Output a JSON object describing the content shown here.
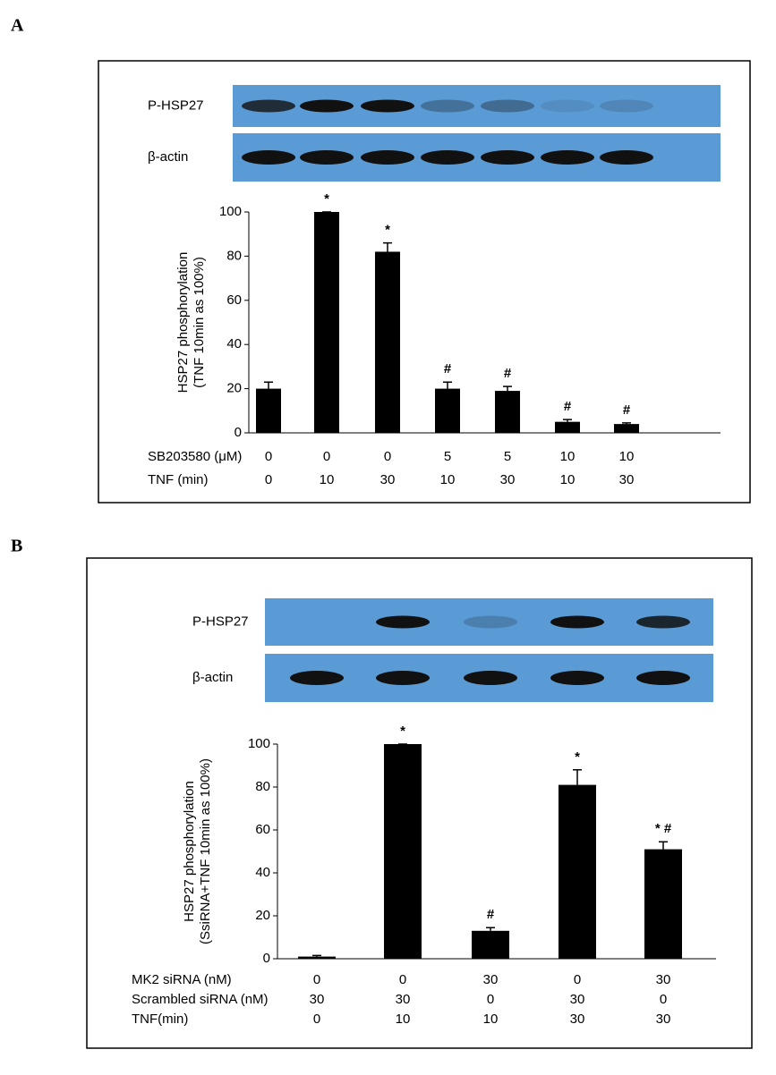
{
  "panels": [
    "A",
    "B"
  ],
  "blot_labels": [
    "P-HSP27",
    "β-actin"
  ],
  "chart_data": [
    {
      "type": "bar",
      "y_label": [
        "HSP27 phosphorylation",
        "(TNF 10min as 100%)"
      ],
      "values": [
        20,
        100,
        82,
        20,
        19,
        5,
        4
      ],
      "errors": [
        3,
        0,
        4,
        3,
        2,
        1,
        0.5
      ],
      "value_annotations": [
        null,
        "*",
        "*",
        "#",
        "#",
        "#",
        "#"
      ],
      "color": "#000000",
      "ylim": [
        0,
        100
      ],
      "yticks": [
        0,
        20,
        40,
        60,
        80,
        100
      ],
      "condition_rows": [
        {
          "label": "SB203580 (μM)",
          "values": [
            0,
            0,
            0,
            5,
            5,
            10,
            10
          ]
        },
        {
          "label": "TNF (min)",
          "values": [
            0,
            10,
            30,
            10,
            30,
            10,
            30
          ]
        }
      ]
    },
    {
      "type": "bar",
      "y_label": [
        "HSP27 phosphorylation",
        "(SsiRNA+TNF 10min as 100%)"
      ],
      "values": [
        1,
        100,
        13,
        81,
        51
      ],
      "errors": [
        0.5,
        0,
        1.5,
        7,
        3.5
      ],
      "value_annotations": [
        null,
        "*",
        "#",
        "*",
        "* #"
      ],
      "color": "#000000",
      "ylim": [
        0,
        100
      ],
      "yticks": [
        0,
        20,
        40,
        60,
        80,
        100
      ],
      "condition_rows": [
        {
          "label": "MK2 siRNA (nM)",
          "values": [
            0,
            0,
            30,
            0,
            30
          ]
        },
        {
          "label": "Scrambled siRNA (nM)",
          "values": [
            30,
            30,
            0,
            30,
            0
          ]
        },
        {
          "label": "TNF(min)",
          "values": [
            0,
            10,
            10,
            30,
            30
          ]
        }
      ]
    }
  ]
}
